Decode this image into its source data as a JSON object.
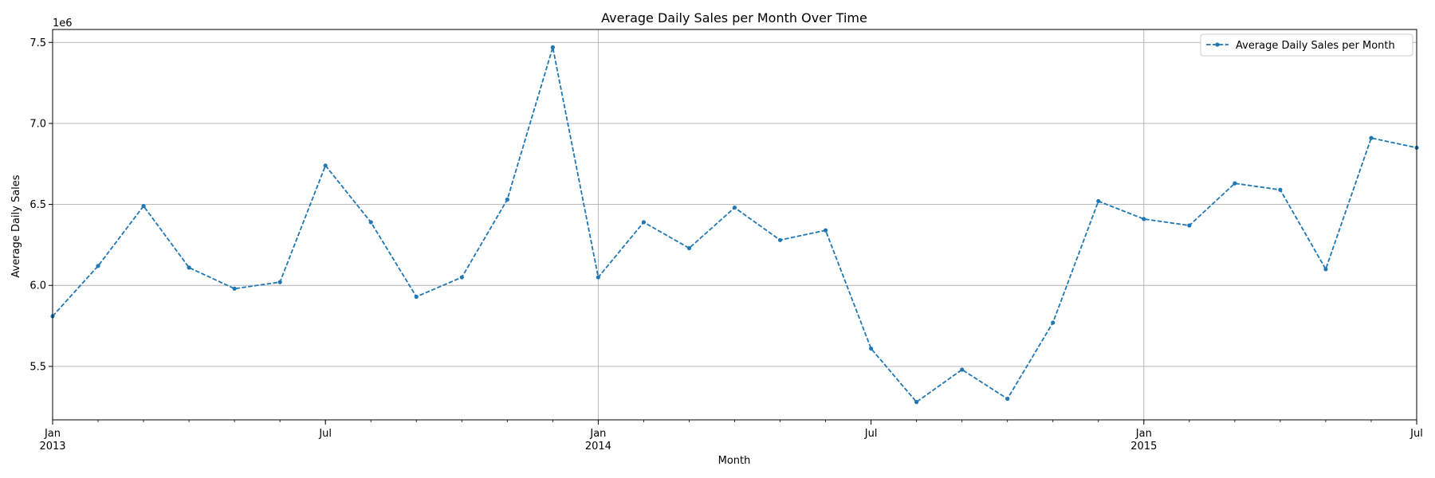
{
  "chart_data": {
    "type": "line",
    "title": "Average Daily Sales per Month Over Time",
    "xlabel": "Month",
    "ylabel": "Average Daily Sales",
    "y_offset_label": "1e6",
    "ylim": [
      5.17,
      7.58
    ],
    "y_ticks": [
      "5.5",
      "6.0",
      "6.5",
      "7.0",
      "7.5"
    ],
    "x_ticks": [
      {
        "date": "2013-01",
        "label": "Jan",
        "year": "2013",
        "major": true
      },
      {
        "date": "2013-07",
        "label": "Jul",
        "year": "",
        "major": false
      },
      {
        "date": "2014-01",
        "label": "Jan",
        "year": "2014",
        "major": true
      },
      {
        "date": "2014-07",
        "label": "Jul",
        "year": "",
        "major": false
      },
      {
        "date": "2015-01",
        "label": "Jan",
        "year": "2015",
        "major": true
      },
      {
        "date": "2015-07",
        "label": "Jul",
        "year": "",
        "major": false
      }
    ],
    "grid": true,
    "legend_position": "top-right",
    "colors": {
      "line": "#1f77b4",
      "grid": "#b0b0b0",
      "axis": "#000000"
    },
    "series": [
      {
        "name": "Average Daily Sales per Month",
        "style": "dashed-with-point-markers",
        "x": [
          "2013-01",
          "2013-02",
          "2013-03",
          "2013-04",
          "2013-05",
          "2013-06",
          "2013-07",
          "2013-08",
          "2013-09",
          "2013-10",
          "2013-11",
          "2013-12",
          "2014-01",
          "2014-02",
          "2014-03",
          "2014-04",
          "2014-05",
          "2014-06",
          "2014-07",
          "2014-08",
          "2014-09",
          "2014-10",
          "2014-11",
          "2014-12",
          "2015-01",
          "2015-02",
          "2015-03",
          "2015-04",
          "2015-05",
          "2015-06",
          "2015-07"
        ],
        "values": [
          5.81,
          6.12,
          6.49,
          6.11,
          5.98,
          6.02,
          6.74,
          6.39,
          5.93,
          6.05,
          6.53,
          7.47,
          6.05,
          6.39,
          6.23,
          6.48,
          6.28,
          6.34,
          5.61,
          5.28,
          5.48,
          5.3,
          5.77,
          6.52,
          6.41,
          6.37,
          6.63,
          6.59,
          6.1,
          6.91,
          6.85
        ]
      }
    ]
  }
}
